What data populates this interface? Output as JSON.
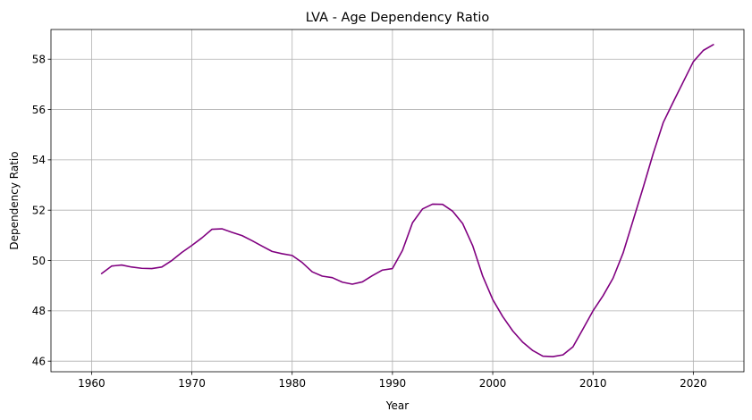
{
  "chart_data": {
    "type": "line",
    "title": "LVA - Age Dependency Ratio",
    "xlabel": "Year",
    "ylabel": "Dependency Ratio",
    "xlim": [
      1955.95,
      2025.05
    ],
    "ylim": [
      45.58,
      59.18
    ],
    "xticks": [
      1960,
      1970,
      1980,
      1990,
      2000,
      2010,
      2020
    ],
    "yticks": [
      46,
      48,
      50,
      52,
      54,
      56,
      58
    ],
    "grid": true,
    "series": [
      {
        "color": "#800080",
        "x": [
          1961,
          1962,
          1963,
          1964,
          1965,
          1966,
          1967,
          1968,
          1969,
          1970,
          1971,
          1972,
          1973,
          1974,
          1975,
          1976,
          1977,
          1978,
          1979,
          1980,
          1981,
          1982,
          1983,
          1984,
          1985,
          1986,
          1987,
          1988,
          1989,
          1990,
          1991,
          1992,
          1993,
          1994,
          1995,
          1996,
          1997,
          1998,
          1999,
          2000,
          2001,
          2002,
          2003,
          2004,
          2005,
          2006,
          2007,
          2008,
          2009,
          2010,
          2011,
          2012,
          2013,
          2014,
          2015,
          2016,
          2017,
          2018,
          2019,
          2020,
          2021,
          2022
        ],
        "y": [
          49.48,
          49.78,
          49.82,
          49.74,
          49.69,
          49.68,
          49.74,
          50.0,
          50.32,
          50.6,
          50.9,
          51.24,
          51.26,
          51.12,
          50.99,
          50.79,
          50.57,
          50.36,
          50.27,
          50.2,
          49.92,
          49.55,
          49.38,
          49.32,
          49.14,
          49.06,
          49.15,
          49.4,
          49.62,
          49.68,
          50.4,
          51.5,
          52.05,
          52.24,
          52.23,
          51.96,
          51.47,
          50.59,
          49.38,
          48.45,
          47.77,
          47.2,
          46.75,
          46.42,
          46.2,
          46.18,
          46.25,
          46.57,
          47.28,
          48.0,
          48.6,
          49.3,
          50.3,
          51.6,
          52.9,
          54.25,
          55.48,
          56.3,
          57.1,
          57.9,
          58.35,
          58.58
        ]
      }
    ]
  }
}
